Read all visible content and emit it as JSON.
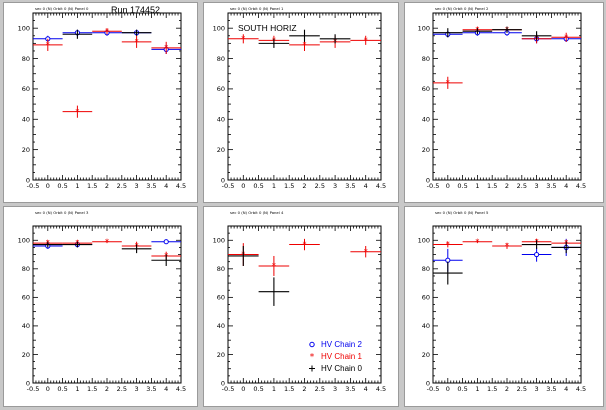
{
  "run_label": "Run 174452",
  "legend": [
    {
      "text": "HV Chain 2",
      "color": "#0000ee",
      "marker": "circle"
    },
    {
      "text": "HV Chain 1",
      "color": "#ee0000",
      "marker": "star"
    },
    {
      "text": "HV Chain 0",
      "color": "#000000",
      "marker": "plus"
    }
  ],
  "colors": {
    "chain2": "#0000ee",
    "chain1": "#ee0000",
    "chain0": "#000000",
    "background": "#c8c8c8"
  },
  "chart_data": [
    {
      "type": "scatter",
      "title": "sec 0 (N) Orbit 0 (N) Panel 0",
      "annotation": "Run 174452",
      "xlim": [
        -0.5,
        4.5
      ],
      "ylim": [
        0,
        110
      ],
      "xticks": [
        "-0.5",
        "0",
        "0.5",
        "1",
        "1.5",
        "2",
        "2.5",
        "3",
        "3.5",
        "4",
        "4.5"
      ],
      "yticks": [
        "0",
        "20",
        "40",
        "60",
        "80",
        "100"
      ],
      "series": [
        {
          "chain": 2,
          "x": [
            0,
            1,
            2,
            3,
            4
          ],
          "y": [
            93,
            97,
            97,
            97,
            86
          ],
          "yerr": [
            2,
            2,
            2,
            2,
            3
          ],
          "xerr": 0.5
        },
        {
          "chain": 1,
          "x": [
            0,
            1,
            2,
            3,
            4
          ],
          "y": [
            89,
            45,
            98,
            91,
            87
          ],
          "yerr": [
            4,
            4,
            2,
            4,
            4
          ],
          "xerr": 0.5
        },
        {
          "chain": 0,
          "x": [
            1,
            3
          ],
          "y": [
            96,
            97
          ],
          "yerr": [
            3,
            2
          ],
          "xerr": 0.5
        }
      ]
    },
    {
      "type": "scatter",
      "title": "sec 0 (N) Orbit 0 (N) Panel 1",
      "annotation": "SOUTH HORIZ",
      "xlim": [
        -0.5,
        4.5
      ],
      "ylim": [
        0,
        110
      ],
      "xticks": [
        "-0.5",
        "0",
        "0.5",
        "1",
        "1.5",
        "2",
        "2.5",
        "3",
        "3.5",
        "4",
        "4.5"
      ],
      "yticks": [
        "0",
        "20",
        "40",
        "60",
        "80",
        "100"
      ],
      "series": [
        {
          "chain": 1,
          "x": [
            0,
            1,
            2,
            3,
            4
          ],
          "y": [
            93,
            92,
            89,
            91,
            92
          ],
          "yerr": [
            3,
            3,
            4,
            4,
            3
          ],
          "xerr": 0.5
        },
        {
          "chain": 0,
          "x": [
            1,
            2,
            3
          ],
          "y": [
            90,
            95,
            93
          ],
          "yerr": [
            3,
            4,
            3
          ],
          "xerr": 0.5
        }
      ]
    },
    {
      "type": "scatter",
      "title": "sec 0 (N) Orbit 0 (N) Panel 2",
      "annotation": "",
      "xlim": [
        -0.5,
        4.5
      ],
      "ylim": [
        0,
        110
      ],
      "xticks": [
        "-0.5",
        "0",
        "0.5",
        "1",
        "1.5",
        "2",
        "2.5",
        "3",
        "3.5",
        "4",
        "4.5"
      ],
      "yticks": [
        "0",
        "20",
        "40",
        "60",
        "80",
        "100"
      ],
      "series": [
        {
          "chain": 2,
          "x": [
            0,
            1,
            2,
            3,
            4
          ],
          "y": [
            96,
            97,
            97,
            93,
            93
          ],
          "yerr": [
            2,
            2,
            2,
            3,
            2
          ],
          "xerr": 0.5
        },
        {
          "chain": 1,
          "x": [
            0,
            1,
            2,
            3,
            4
          ],
          "y": [
            64,
            99,
            99,
            93,
            94
          ],
          "yerr": [
            4,
            2,
            2,
            3,
            3
          ],
          "xerr": 0.5
        },
        {
          "chain": 0,
          "x": [
            0,
            1,
            2,
            3
          ],
          "y": [
            97,
            98,
            99,
            95
          ],
          "yerr": [
            3,
            2,
            2,
            3
          ],
          "xerr": 0.5
        }
      ]
    },
    {
      "type": "scatter",
      "title": "sec 0 (N) Orbit 0 (N) Panel 3",
      "annotation": "",
      "xlim": [
        -0.5,
        4.5
      ],
      "ylim": [
        0,
        110
      ],
      "xticks": [
        "-0.5",
        "0",
        "0.5",
        "1",
        "1.5",
        "2",
        "2.5",
        "3",
        "3.5",
        "4",
        "4.5"
      ],
      "yticks": [
        "0",
        "20",
        "40",
        "60",
        "80",
        "100"
      ],
      "series": [
        {
          "chain": 2,
          "x": [
            0,
            1,
            4
          ],
          "y": [
            96,
            97,
            99
          ],
          "yerr": [
            2,
            2,
            1
          ],
          "xerr": 0.5
        },
        {
          "chain": 1,
          "x": [
            0,
            1,
            2,
            3,
            4
          ],
          "y": [
            98,
            98,
            99,
            96,
            89
          ],
          "yerr": [
            2,
            2,
            1,
            3,
            3
          ],
          "xerr": 0.5
        },
        {
          "chain": 0,
          "x": [
            0,
            1,
            3,
            4
          ],
          "y": [
            97,
            97,
            94,
            86
          ],
          "yerr": [
            2,
            2,
            3,
            4
          ],
          "xerr": 0.5
        }
      ]
    },
    {
      "type": "scatter",
      "title": "sec 0 (N) Orbit 0 (N) Panel 4",
      "annotation": "",
      "xlim": [
        -0.5,
        4.5
      ],
      "ylim": [
        0,
        110
      ],
      "xticks": [
        "-0.5",
        "0",
        "0.5",
        "1",
        "1.5",
        "2",
        "2.5",
        "3",
        "3.5",
        "4",
        "4.5"
      ],
      "yticks": [
        "0",
        "20",
        "40",
        "60",
        "80",
        "100"
      ],
      "series": [
        {
          "chain": 1,
          "x": [
            0,
            1,
            2,
            4
          ],
          "y": [
            90,
            82,
            97,
            92
          ],
          "yerr": [
            8,
            7,
            4,
            4
          ],
          "xerr": 0.5
        },
        {
          "chain": 0,
          "x": [
            0,
            1
          ],
          "y": [
            89,
            64
          ],
          "yerr": [
            7,
            10
          ],
          "xerr": 0.5
        }
      ]
    },
    {
      "type": "scatter",
      "title": "sec 0 (N) Orbit 0 (N) Panel 5",
      "annotation": "",
      "xlim": [
        -0.5,
        4.5
      ],
      "ylim": [
        0,
        110
      ],
      "xticks": [
        "-0.5",
        "0",
        "0.5",
        "1",
        "1.5",
        "2",
        "2.5",
        "3",
        "3.5",
        "4",
        "4.5"
      ],
      "yticks": [
        "0",
        "20",
        "40",
        "60",
        "80",
        "100"
      ],
      "series": [
        {
          "chain": 2,
          "x": [
            0,
            3,
            4
          ],
          "y": [
            86,
            90,
            95
          ],
          "yerr": [
            8,
            5,
            6
          ],
          "xerr": 0.5
        },
        {
          "chain": 1,
          "x": [
            0,
            1,
            2,
            3,
            4
          ],
          "y": [
            97,
            99,
            96,
            99,
            98
          ],
          "yerr": [
            2,
            1,
            2,
            2,
            2
          ],
          "xerr": 0.5
        },
        {
          "chain": 0,
          "x": [
            0,
            3,
            4
          ],
          "y": [
            77,
            97,
            95
          ],
          "yerr": [
            8,
            3,
            4
          ],
          "xerr": 0.5
        }
      ]
    }
  ]
}
